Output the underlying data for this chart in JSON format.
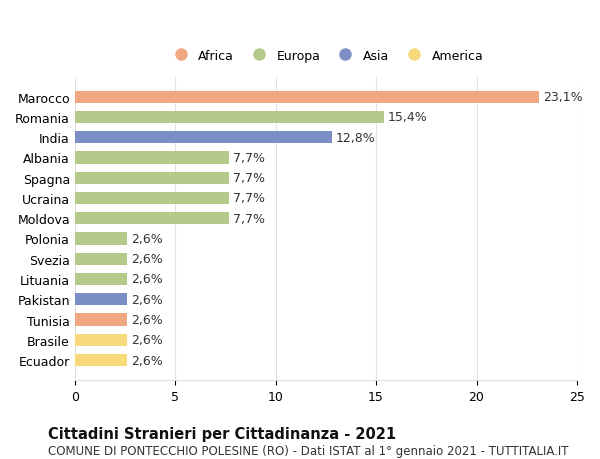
{
  "categories": [
    "Ecuador",
    "Brasile",
    "Tunisia",
    "Pakistan",
    "Lituania",
    "Svezia",
    "Polonia",
    "Moldova",
    "Ucraina",
    "Spagna",
    "Albania",
    "India",
    "Romania",
    "Marocco"
  ],
  "values": [
    2.6,
    2.6,
    2.6,
    2.6,
    2.6,
    2.6,
    2.6,
    7.7,
    7.7,
    7.7,
    7.7,
    12.8,
    15.4,
    23.1
  ],
  "labels": [
    "2,6%",
    "2,6%",
    "2,6%",
    "2,6%",
    "2,6%",
    "2,6%",
    "2,6%",
    "7,7%",
    "7,7%",
    "7,7%",
    "7,7%",
    "12,8%",
    "15,4%",
    "23,1%"
  ],
  "colors": [
    "#f5d97a",
    "#f5d97a",
    "#f0a882",
    "#7b8fc4",
    "#b5c98a",
    "#b5c98a",
    "#b5c98a",
    "#b5c98a",
    "#b5c98a",
    "#b5c98a",
    "#b5c98a",
    "#7b8fc4",
    "#b5c98a",
    "#f0a882"
  ],
  "legend_labels": [
    "Africa",
    "Europa",
    "Asia",
    "America"
  ],
  "legend_colors": [
    "#f0a882",
    "#b5c98a",
    "#7b8fc4",
    "#f5d97a"
  ],
  "title_bold": "Cittadini Stranieri per Cittadinanza - 2021",
  "subtitle": "COMUNE DI PONTECCHIO POLESINE (RO) - Dati ISTAT al 1° gennaio 2021 - TUTTITALIA.IT",
  "xlim": [
    0,
    25
  ],
  "xticks": [
    0,
    5,
    10,
    15,
    20,
    25
  ],
  "bar_height": 0.6,
  "background_color": "#ffffff",
  "grid_color": "#e0e0e0",
  "label_fontsize": 9,
  "tick_fontsize": 9,
  "title_fontsize": 10.5,
  "subtitle_fontsize": 8.5
}
